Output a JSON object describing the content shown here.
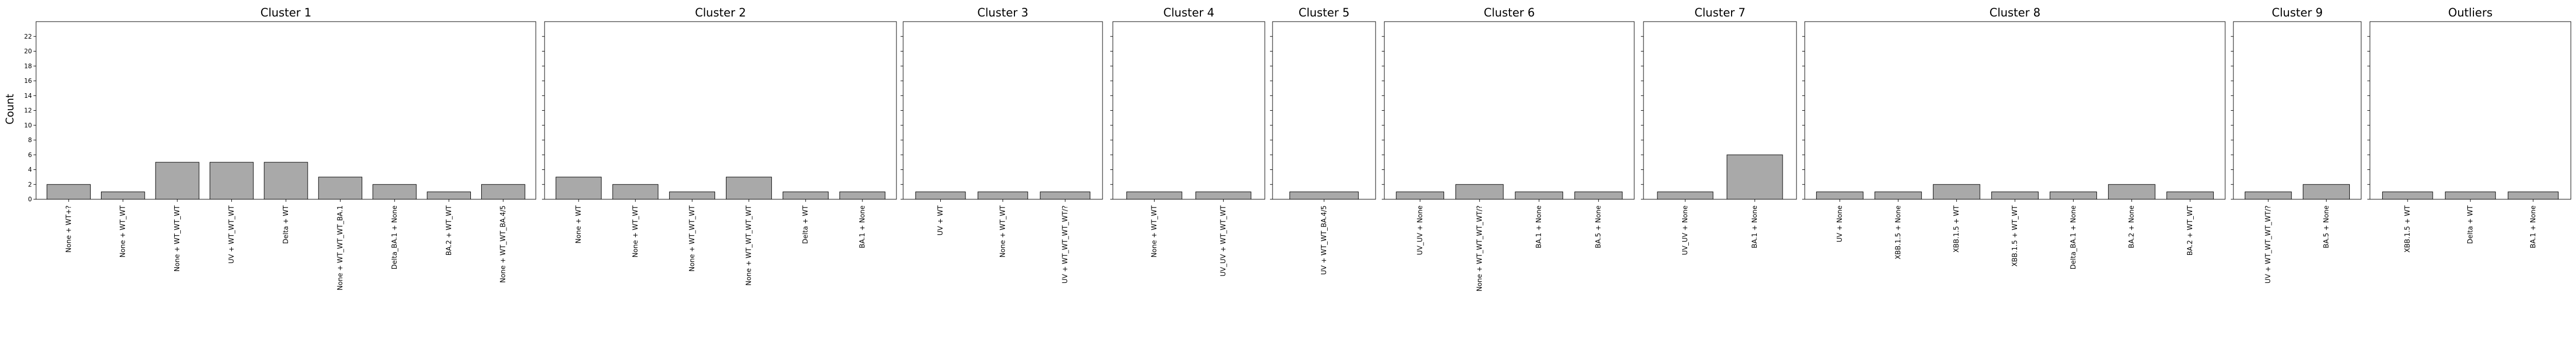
{
  "chart_data": {
    "type": "bar",
    "ylabel": "Count",
    "ylim": [
      0,
      24
    ],
    "yticks": [
      0,
      2,
      4,
      6,
      8,
      10,
      12,
      14,
      16,
      18,
      20,
      22
    ],
    "grid": false,
    "shared_y": true,
    "bar_color": "#a9a9a9",
    "edge_color": "#000000",
    "panels": [
      {
        "title": "Cluster 1",
        "categories": [
          "None + WT+?",
          "None + WT_WT",
          "None + WT_WT_WT",
          "UV + WT_WT_WT",
          "Delta + WT",
          "None + WT_WT_WT_BA.1",
          "Delta_BA.1 + None",
          "BA.2 + WT_WT",
          "None + WT_WT_BA.4/5"
        ],
        "values": [
          2,
          1,
          5,
          5,
          5,
          3,
          2,
          1,
          2
        ]
      },
      {
        "title": "Cluster 2",
        "categories": [
          "None + WT",
          "None + WT_WT",
          "None + WT_WT_WT",
          "None + WT_WT_WT_WT",
          "Delta + WT",
          "BA.1 + None"
        ],
        "values": [
          3,
          2,
          1,
          3,
          1,
          1
        ]
      },
      {
        "title": "Cluster 3",
        "categories": [
          "UV + WT",
          "None + WT_WT",
          "UV + WT_WT_WT_WT/?"
        ],
        "values": [
          1,
          1,
          1
        ]
      },
      {
        "title": "Cluster 4",
        "categories": [
          "None + WT_WT",
          "UV_UV + WT_WT_WT"
        ],
        "values": [
          1,
          1
        ]
      },
      {
        "title": "Cluster 5",
        "categories": [
          "UV + WT_WT_BA.4/5"
        ],
        "values": [
          1
        ]
      },
      {
        "title": "Cluster 6",
        "categories": [
          "UV_UV + None",
          "None + WT_WT_WT_WT/?",
          "BA.1 + None",
          "BA.5 + None"
        ],
        "values": [
          1,
          2,
          1,
          1
        ]
      },
      {
        "title": "Cluster 7",
        "categories": [
          "UV_UV + None",
          "BA.1 + None"
        ],
        "values": [
          1,
          6
        ]
      },
      {
        "title": "Cluster 8",
        "categories": [
          "UV + None",
          "XBB.1.5 + None",
          "XBB.1.5 + WT",
          "XBB.1.5 + WT_WT",
          "Delta_BA.1 + None",
          "BA.2 + None",
          "BA.2 + WT_WT"
        ],
        "values": [
          1,
          1,
          2,
          1,
          1,
          2,
          1
        ]
      },
      {
        "title": "Cluster 9",
        "categories": [
          "UV + WT_WT_WT_WT/?",
          "BA.5 + None"
        ],
        "values": [
          1,
          2
        ]
      },
      {
        "title": "Outliers",
        "categories": [
          "XBB.1.5 + WT",
          "Delta + WT",
          "BA.1 + None"
        ],
        "values": [
          1,
          1,
          1
        ]
      }
    ]
  }
}
